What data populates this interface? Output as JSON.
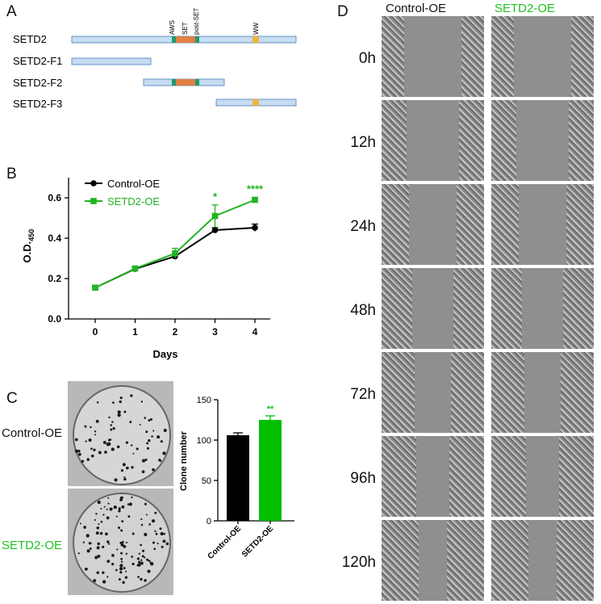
{
  "panels": {
    "a": "A",
    "b": "B",
    "c": "C",
    "d": "D"
  },
  "panel_a": {
    "constructs": [
      {
        "label": "SETD2"
      },
      {
        "label": "SETD2-F1"
      },
      {
        "label": "SETD2-F2"
      },
      {
        "label": "SETD2-F3"
      }
    ],
    "domain_labels": [
      "AWS",
      "SET",
      "post-SET",
      "WW"
    ],
    "colors": {
      "bar": "#c5dcf2",
      "bar_edge": "#4a7db8",
      "aws": "#1e9a6e",
      "set": "#e27f45",
      "ww": "#f0b43c"
    }
  },
  "chart_data": [
    {
      "type": "line",
      "panel": "B",
      "x": [
        0,
        1,
        2,
        3,
        4
      ],
      "series": [
        {
          "name": "Control-OE",
          "color": "#000000",
          "values": [
            0.155,
            0.248,
            0.31,
            0.44,
            0.452
          ],
          "errors": [
            0.01,
            0.01,
            0.012,
            0.012,
            0.018
          ]
        },
        {
          "name": "SETD2-OE",
          "color": "#22b422",
          "values": [
            0.155,
            0.25,
            0.325,
            0.51,
            0.59
          ],
          "errors": [
            0.01,
            0.008,
            0.025,
            0.055,
            0.012
          ]
        }
      ],
      "significance": [
        {
          "x": 3,
          "label": "*"
        },
        {
          "x": 4,
          "label": "****"
        }
      ],
      "xlabel": "Days",
      "ylabel_main": "O.D.",
      "ylabel_sub": "450",
      "ylim": [
        0,
        0.7
      ],
      "yticks": [
        "0.0",
        "0.2",
        "0.4",
        "0.6"
      ],
      "xticks": [
        "0",
        "1",
        "2",
        "3",
        "4"
      ],
      "legend": "top-left",
      "grid": false
    },
    {
      "type": "bar",
      "panel": "C",
      "categories": [
        "Control-OE",
        "SETD2-OE"
      ],
      "values": [
        106,
        125
      ],
      "errors": [
        3,
        5
      ],
      "colors": [
        "#000000",
        "#00c000"
      ],
      "significance": [
        {
          "category": "SETD2-OE",
          "label": "**"
        }
      ],
      "ylabel": "Clone number",
      "ylim": [
        0,
        150
      ],
      "yticks": [
        "0",
        "50",
        "100",
        "150"
      ],
      "grid": false
    }
  ],
  "panel_c": {
    "plate_labels": [
      "Control-OE",
      "SETD2-OE"
    ],
    "plate_label_colors": [
      "#111111",
      "#22c022"
    ]
  },
  "panel_d": {
    "column_headers": [
      "Control-OE",
      "SETD2-OE"
    ],
    "column_header_colors": [
      "#111111",
      "#22c022"
    ],
    "timepoints": [
      "0h",
      "12h",
      "24h",
      "48h",
      "72h",
      "96h",
      "120h"
    ],
    "gap_closure": [
      0.0,
      0.15,
      0.25,
      0.45,
      0.6,
      0.7,
      0.8
    ]
  }
}
